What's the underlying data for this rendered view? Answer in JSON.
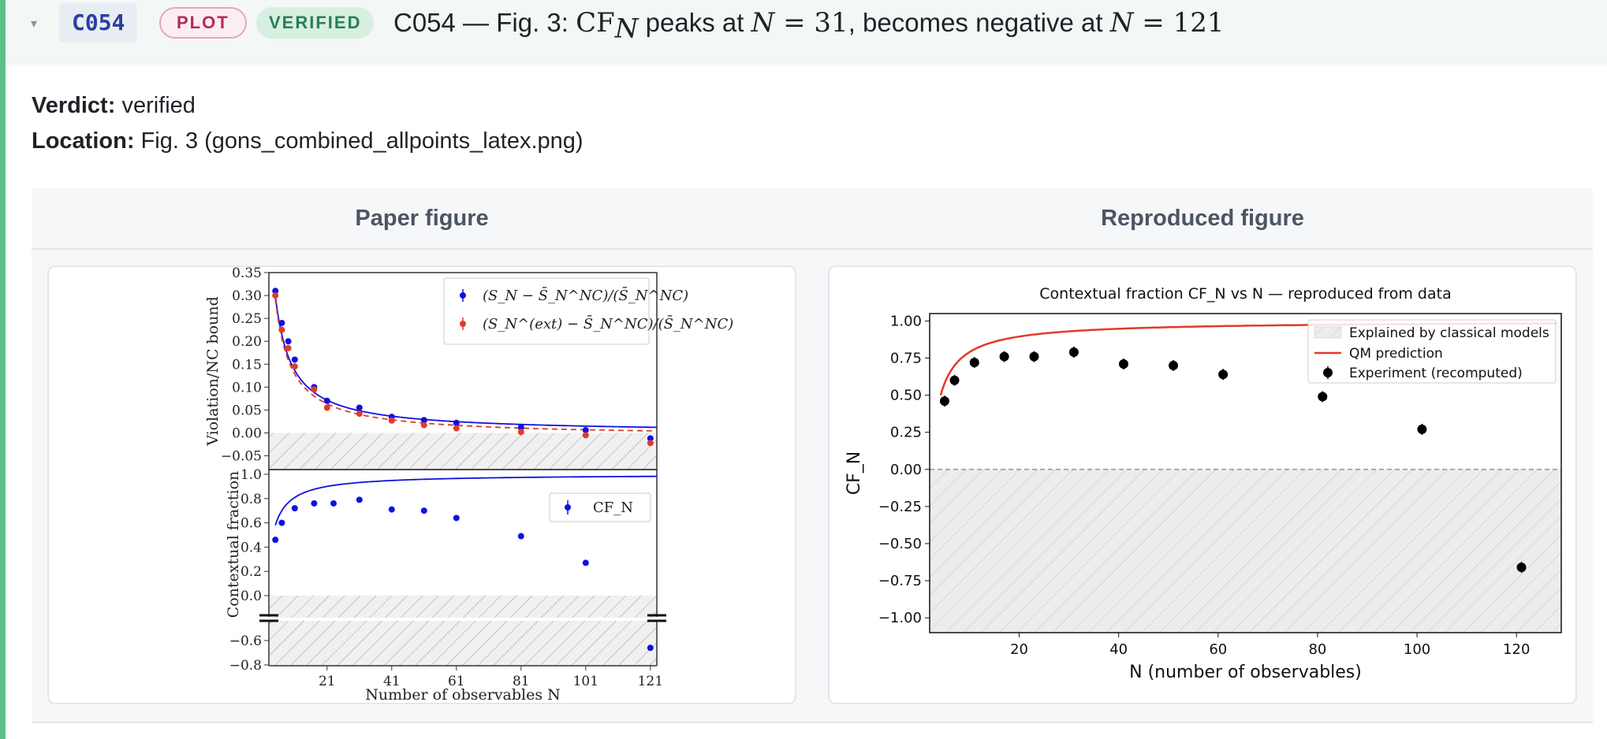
{
  "claim": {
    "id": "C054",
    "type_badge": "PLOT",
    "status_badge": "VERIFIED",
    "title_prefix": "C054 — Fig. 3: ",
    "title_cf": "CF",
    "title_sub": "N",
    "title_mid1": " peaks at ",
    "title_var1": "N",
    "title_eq1": " = 31",
    "title_mid2": ", becomes negative at ",
    "title_var2": "N",
    "title_eq2": " = 121",
    "verdict_label": "Verdict:",
    "verdict_value": "verified",
    "location_label": "Location:",
    "location_value": "Fig. 3 (gons_combined_allpoints_latex.png)"
  },
  "comparison": {
    "left_header": "Paper figure",
    "right_header": "Reproduced figure"
  },
  "colors": {
    "accent_green": "#5cc08a",
    "blue": "#1010e0",
    "red": "#e03b2b",
    "qm_red": "#e23a2a",
    "black": "#000000"
  },
  "chart_data": [
    {
      "type": "scatter",
      "panel": "paper-top",
      "xlabel": "",
      "ylabel": "Violation/NC bound",
      "xlim": [
        3,
        123
      ],
      "ylim": [
        -0.08,
        0.35
      ],
      "yticks": [
        -0.05,
        0.0,
        0.05,
        0.1,
        0.15,
        0.2,
        0.25,
        0.3,
        0.35
      ],
      "ytick_labels": [
        "−0.05",
        "0.00",
        "0.05",
        "0.10",
        "0.15",
        "0.20",
        "0.25",
        "0.30",
        "0.35"
      ],
      "legend": [
        "(S_N − S̄_N^NC)/(S̄_N^NC)",
        "(S_N^(ext) − S̄_N^NC)/(S̄_N^NC)"
      ],
      "legend_position": "top-right",
      "series": [
        {
          "name": "(S_N − S̄_N^NC)/(S̄_N^NC)",
          "color": "#1010e0",
          "x": [
            5,
            7,
            9,
            11,
            17,
            21,
            31,
            41,
            51,
            61,
            81,
            101,
            121
          ],
          "y": [
            0.31,
            0.24,
            0.2,
            0.16,
            0.1,
            0.07,
            0.055,
            0.035,
            0.028,
            0.022,
            0.012,
            0.006,
            -0.012
          ]
        },
        {
          "name": "(S_N^(ext) − S̄_N^NC)/(S̄_N^NC)",
          "color": "#e03b2b",
          "x": [
            5,
            7,
            9,
            11,
            17,
            21,
            31,
            41,
            51,
            61,
            81,
            101,
            121
          ],
          "y": [
            0.3,
            0.225,
            0.185,
            0.145,
            0.095,
            0.055,
            0.042,
            0.027,
            0.017,
            0.01,
            0.002,
            -0.005,
            -0.022
          ]
        }
      ]
    },
    {
      "type": "scatter",
      "panel": "paper-bottom",
      "xlabel": "Number of observables N",
      "ylabel": "Contextual fraction",
      "xlim": [
        3,
        123
      ],
      "xticks": [
        21,
        41,
        61,
        81,
        101,
        121
      ],
      "yticks_upper": [
        0.0,
        0.2,
        0.4,
        0.6,
        0.8,
        1.0
      ],
      "ytick_labels_upper": [
        "0.0",
        "0.2",
        "0.4",
        "0.6",
        "0.8",
        "1.0"
      ],
      "yticks_lower": [
        -0.6,
        -0.8
      ],
      "ytick_labels_lower": [
        "−0.6",
        "−0.8"
      ],
      "legend": [
        "CF_N"
      ],
      "legend_position": "right",
      "series": [
        {
          "name": "CF_N",
          "color": "#1010e0",
          "x": [
            5,
            7,
            11,
            17,
            23,
            31,
            41,
            51,
            61,
            81,
            101,
            121
          ],
          "y": [
            0.46,
            0.6,
            0.72,
            0.76,
            0.76,
            0.79,
            0.71,
            0.7,
            0.64,
            0.49,
            0.27,
            -0.66
          ]
        }
      ]
    },
    {
      "type": "scatter",
      "panel": "reproduced",
      "title": "Contextual fraction CF_N vs N — reproduced from data",
      "xlabel": "N (number of observables)",
      "ylabel": "CF_N",
      "xlim": [
        2,
        129
      ],
      "ylim": [
        -1.1,
        1.05
      ],
      "xticks": [
        20,
        40,
        60,
        80,
        100,
        120
      ],
      "xtick_labels": [
        "20",
        "40",
        "60",
        "80",
        "100",
        "120"
      ],
      "yticks": [
        -1.0,
        -0.75,
        -0.5,
        -0.25,
        0.0,
        0.25,
        0.5,
        0.75,
        1.0
      ],
      "ytick_labels": [
        "−1.00",
        "−0.75",
        "−0.50",
        "−0.25",
        "0.00",
        "0.25",
        "0.50",
        "0.75",
        "1.00"
      ],
      "legend": [
        "Explained by classical models",
        "QM prediction",
        "Experiment (recomputed)"
      ],
      "legend_position": "top-right",
      "series": [
        {
          "name": "Experiment (recomputed)",
          "color": "#000000",
          "x": [
            5,
            7,
            11,
            17,
            23,
            31,
            41,
            51,
            61,
            81,
            101,
            121
          ],
          "y": [
            0.46,
            0.6,
            0.72,
            0.76,
            0.76,
            0.79,
            0.71,
            0.7,
            0.64,
            0.49,
            0.27,
            -0.66
          ]
        },
        {
          "name": "QM prediction",
          "color": "#e23a2a",
          "curve": "1 - 2.1/N"
        }
      ]
    }
  ]
}
